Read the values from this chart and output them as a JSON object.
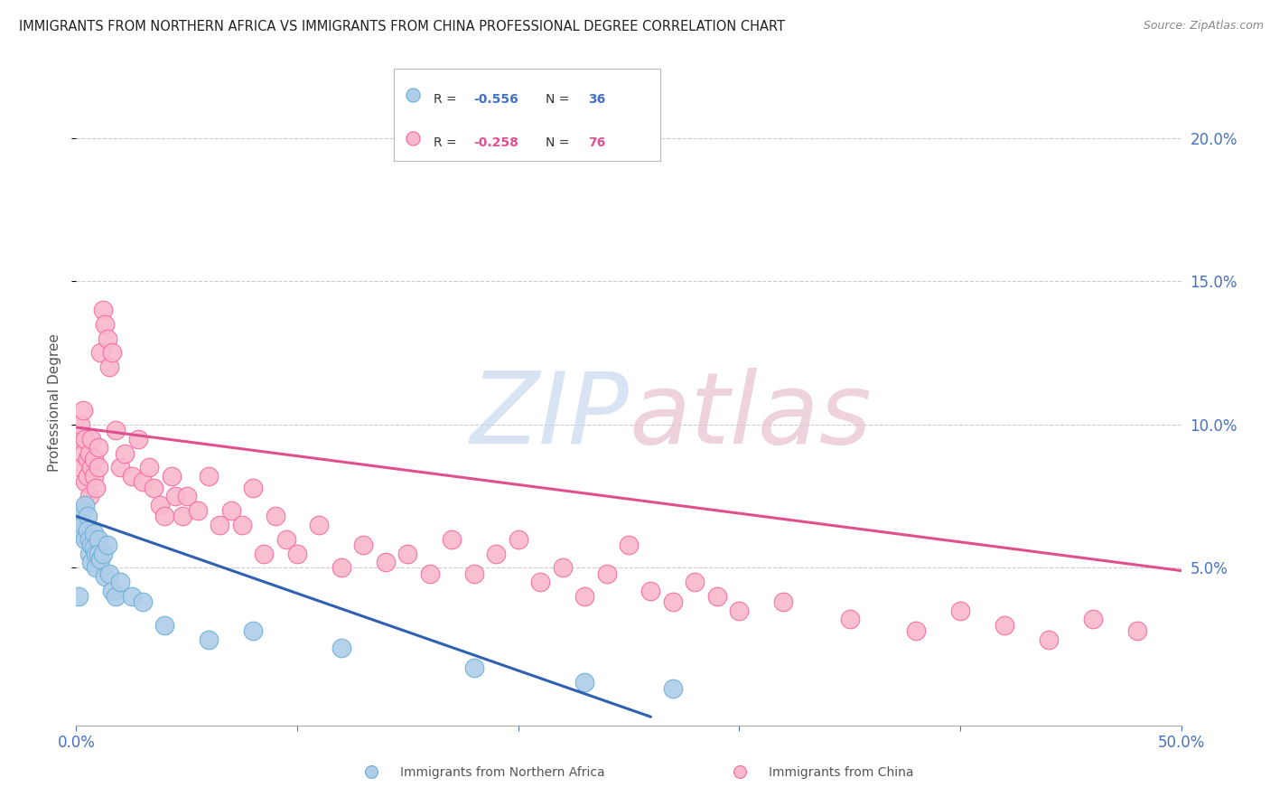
{
  "title": "IMMIGRANTS FROM NORTHERN AFRICA VS IMMIGRANTS FROM CHINA PROFESSIONAL DEGREE CORRELATION CHART",
  "source": "Source: ZipAtlas.com",
  "ylabel": "Professional Degree",
  "xlim": [
    0,
    0.5
  ],
  "ylim": [
    -0.005,
    0.22
  ],
  "yticks_right": [
    0.05,
    0.1,
    0.15,
    0.2
  ],
  "ytick_labels_right": [
    "5.0%",
    "10.0%",
    "15.0%",
    "20.0%"
  ],
  "xticks": [
    0.0,
    0.1,
    0.2,
    0.3,
    0.4,
    0.5
  ],
  "xtick_labels_show": [
    "0.0%",
    "",
    "",
    "",
    "",
    "50.0%"
  ],
  "series_blue": {
    "name": "Immigrants from Northern Africa",
    "color": "#aecde8",
    "edge_color": "#6baed6",
    "x": [
      0.001,
      0.002,
      0.003,
      0.003,
      0.004,
      0.004,
      0.005,
      0.005,
      0.006,
      0.006,
      0.007,
      0.007,
      0.008,
      0.008,
      0.009,
      0.009,
      0.01,
      0.01,
      0.011,
      0.012,
      0.013,
      0.014,
      0.015,
      0.016,
      0.018,
      0.02,
      0.025,
      0.03,
      0.04,
      0.06,
      0.08,
      0.12,
      0.18,
      0.23,
      0.27,
      0.001
    ],
    "y": [
      0.062,
      0.068,
      0.07,
      0.065,
      0.072,
      0.06,
      0.068,
      0.063,
      0.06,
      0.055,
      0.058,
      0.052,
      0.062,
      0.057,
      0.055,
      0.05,
      0.06,
      0.055,
      0.053,
      0.055,
      0.047,
      0.058,
      0.048,
      0.042,
      0.04,
      0.045,
      0.04,
      0.038,
      0.03,
      0.025,
      0.028,
      0.022,
      0.015,
      0.01,
      0.008,
      0.04
    ]
  },
  "series_pink": {
    "name": "Immigrants from China",
    "color": "#f9b8cc",
    "edge_color": "#f768a1",
    "x": [
      0.001,
      0.002,
      0.002,
      0.003,
      0.003,
      0.004,
      0.004,
      0.005,
      0.005,
      0.006,
      0.006,
      0.007,
      0.007,
      0.008,
      0.008,
      0.009,
      0.01,
      0.01,
      0.011,
      0.012,
      0.013,
      0.014,
      0.015,
      0.016,
      0.018,
      0.02,
      0.022,
      0.025,
      0.028,
      0.03,
      0.033,
      0.035,
      0.038,
      0.04,
      0.043,
      0.045,
      0.048,
      0.05,
      0.055,
      0.06,
      0.065,
      0.07,
      0.075,
      0.08,
      0.085,
      0.09,
      0.095,
      0.1,
      0.11,
      0.12,
      0.13,
      0.14,
      0.15,
      0.16,
      0.17,
      0.18,
      0.19,
      0.2,
      0.21,
      0.22,
      0.23,
      0.24,
      0.25,
      0.26,
      0.27,
      0.28,
      0.29,
      0.3,
      0.32,
      0.35,
      0.38,
      0.4,
      0.42,
      0.44,
      0.46,
      0.48
    ],
    "y": [
      0.095,
      0.085,
      0.1,
      0.09,
      0.105,
      0.08,
      0.095,
      0.088,
      0.082,
      0.075,
      0.09,
      0.085,
      0.095,
      0.082,
      0.088,
      0.078,
      0.092,
      0.085,
      0.125,
      0.14,
      0.135,
      0.13,
      0.12,
      0.125,
      0.098,
      0.085,
      0.09,
      0.082,
      0.095,
      0.08,
      0.085,
      0.078,
      0.072,
      0.068,
      0.082,
      0.075,
      0.068,
      0.075,
      0.07,
      0.082,
      0.065,
      0.07,
      0.065,
      0.078,
      0.055,
      0.068,
      0.06,
      0.055,
      0.065,
      0.05,
      0.058,
      0.052,
      0.055,
      0.048,
      0.06,
      0.048,
      0.055,
      0.06,
      0.045,
      0.05,
      0.04,
      0.048,
      0.058,
      0.042,
      0.038,
      0.045,
      0.04,
      0.035,
      0.038,
      0.032,
      0.028,
      0.035,
      0.03,
      0.025,
      0.032,
      0.028
    ]
  },
  "blue_line": {
    "x0": 0.0,
    "x1": 0.26,
    "y0": 0.068,
    "y1": -0.002
  },
  "pink_line": {
    "x0": 0.0,
    "x1": 0.5,
    "y0": 0.099,
    "y1": 0.049
  },
  "background_color": "#ffffff",
  "title_color": "#222222",
  "axis_color": "#4472c4",
  "grid_color": "#cccccc",
  "legend_R_blue": "R = -0.556",
  "legend_N_blue": "N = 36",
  "legend_R_pink": "R = -0.258",
  "legend_N_pink": "N = 76",
  "legend_color_blue": "#4472c4",
  "legend_color_pink": "#e05090",
  "legend_text_color": "#333333"
}
